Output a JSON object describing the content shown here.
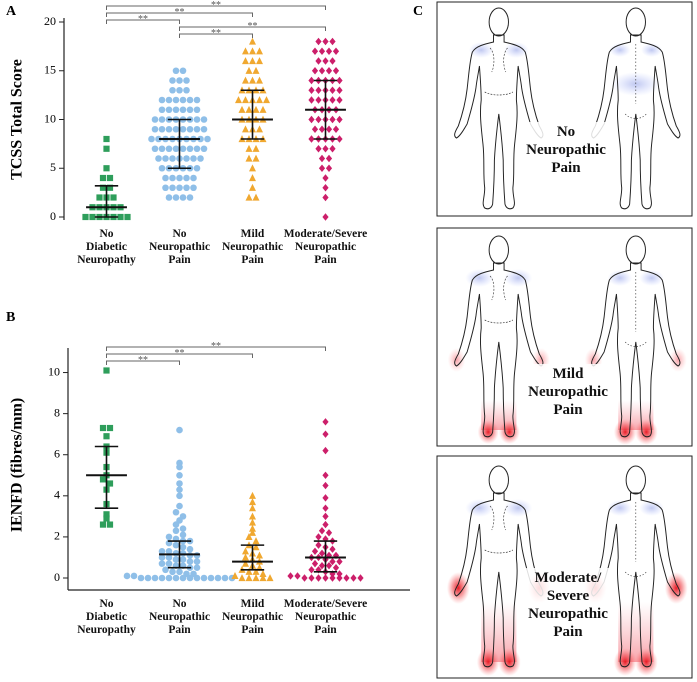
{
  "chart_data": [
    {
      "type": "strip",
      "panel_label": "A",
      "y_label": "TCSS Total Score",
      "categories": [
        "No\nDiabetic\nNeuropathy",
        "No\nNeuropathic\nPain",
        "Mild\nNeuropathic\nPain",
        "Moderate/Severe\nNeuropathic\nPain"
      ],
      "ylim": [
        0,
        20
      ],
      "yticks": [
        0,
        5,
        10,
        15,
        20
      ],
      "series": [
        {
          "color": "#2e9e5b",
          "marker": "square",
          "median": 1,
          "q1": 0,
          "q3": 3.2,
          "values": [
            8,
            7,
            5,
            4,
            4,
            3,
            3,
            2,
            2,
            2,
            1,
            1,
            1,
            1,
            1,
            0,
            0,
            0,
            0,
            0,
            0,
            0
          ]
        },
        {
          "color": "#8fbfe8",
          "marker": "circle",
          "median": 8,
          "q1": 5,
          "q3": 10,
          "values": [
            15,
            15,
            14,
            14,
            14,
            13,
            13,
            13,
            12,
            12,
            12,
            12,
            12,
            12,
            11,
            11,
            11,
            11,
            11,
            11,
            10,
            10,
            10,
            10,
            10,
            10,
            10,
            10,
            9,
            9,
            9,
            9,
            9,
            9,
            9,
            9,
            8,
            8,
            8,
            8,
            8,
            8,
            8,
            8,
            8,
            7,
            7,
            7,
            7,
            7,
            7,
            7,
            7,
            6,
            6,
            6,
            6,
            6,
            6,
            6,
            5,
            5,
            5,
            5,
            5,
            5,
            4,
            4,
            4,
            4,
            4,
            3,
            3,
            3,
            3,
            3,
            2,
            2,
            2,
            2
          ]
        },
        {
          "color": "#f0a830",
          "marker": "triangle",
          "median": 10,
          "q1": 8,
          "q3": 13,
          "values": [
            18,
            17,
            17,
            17,
            16,
            16,
            16,
            15,
            15,
            14,
            14,
            14,
            13,
            13,
            13,
            13,
            12,
            12,
            12,
            12,
            12,
            11,
            11,
            11,
            11,
            10,
            10,
            10,
            10,
            9,
            9,
            9,
            8,
            8,
            8,
            8,
            7,
            7,
            6,
            6,
            5,
            4,
            3,
            2,
            2
          ]
        },
        {
          "color": "#cc1f6a",
          "marker": "diamond",
          "median": 11,
          "q1": 8,
          "q3": 14,
          "values": [
            18,
            18,
            18,
            17,
            17,
            17,
            17,
            16,
            16,
            16,
            15,
            15,
            15,
            15,
            14,
            14,
            14,
            14,
            14,
            13,
            13,
            13,
            13,
            13,
            12,
            12,
            12,
            12,
            12,
            11,
            11,
            11,
            11,
            10,
            10,
            10,
            10,
            10,
            9,
            9,
            9,
            9,
            8,
            8,
            8,
            8,
            8,
            7,
            7,
            7,
            6,
            6,
            5,
            5,
            4,
            3,
            2,
            0
          ]
        }
      ],
      "brackets": [
        {
          "from": 0,
          "to": 3,
          "label": "**"
        },
        {
          "from": 0,
          "to": 2,
          "label": "**"
        },
        {
          "from": 0,
          "to": 1,
          "label": "**"
        },
        {
          "from": 1,
          "to": 3,
          "label": "**"
        },
        {
          "from": 1,
          "to": 2,
          "label": "**"
        }
      ]
    },
    {
      "type": "strip",
      "panel_label": "B",
      "y_label": "IENFD (fibres/mm)",
      "categories": [
        "No\nDiabetic\nNeuropathy",
        "No\nNeuropathic\nPain",
        "Mild\nNeuropathic\nPain",
        "Moderate/Severe\nNeuropathic\nPain"
      ],
      "ylim": [
        0,
        11
      ],
      "yticks": [
        0,
        2,
        4,
        6,
        8,
        10
      ],
      "x_axis_line": true,
      "series": [
        {
          "color": "#2e9e5b",
          "marker": "square",
          "median": 5.0,
          "q1": 3.4,
          "q3": 6.4,
          "values": [
            10.1,
            7.3,
            7.3,
            6.9,
            6.4,
            6.1,
            5.4,
            5.0,
            4.8,
            4.6,
            4.3,
            3.6,
            3.1,
            2.9,
            2.6,
            2.6
          ]
        },
        {
          "color": "#8fbfe8",
          "marker": "circle",
          "median": 1.15,
          "q1": 0.5,
          "q3": 1.8,
          "values": [
            7.2,
            5.6,
            5.4,
            5.0,
            4.6,
            4.3,
            4.0,
            3.5,
            3.2,
            3.0,
            2.8,
            2.6,
            2.4,
            2.3,
            2.1,
            2.0,
            1.9,
            1.8,
            1.8,
            1.7,
            1.6,
            1.5,
            1.4,
            1.3,
            1.3,
            1.2,
            1.2,
            1.1,
            1.1,
            1.0,
            1.0,
            0.9,
            0.9,
            0.8,
            0.8,
            0.7,
            0.7,
            0.6,
            0.6,
            0.5,
            0.5,
            0.4,
            0.3,
            0.3,
            0.2,
            0.2,
            0.1,
            0.1,
            0,
            0,
            0,
            0,
            0,
            0,
            0,
            0,
            0,
            0,
            0,
            0,
            0,
            0
          ]
        },
        {
          "color": "#f0a830",
          "marker": "triangle",
          "median": 0.8,
          "q1": 0.4,
          "q3": 1.6,
          "values": [
            4.0,
            3.7,
            3.4,
            3.0,
            2.7,
            2.4,
            2.2,
            2.0,
            1.8,
            1.6,
            1.5,
            1.3,
            1.2,
            1.1,
            1.0,
            0.9,
            0.8,
            0.7,
            0.6,
            0.5,
            0.4,
            0.3,
            0.3,
            0.2,
            0.1,
            0,
            0,
            0,
            0,
            0
          ]
        },
        {
          "color": "#cc1f6a",
          "marker": "diamond",
          "median": 1.0,
          "q1": 0.3,
          "q3": 1.8,
          "values": [
            7.6,
            7.0,
            6.2,
            5.0,
            4.5,
            3.9,
            3.4,
            3.0,
            2.6,
            2.3,
            2.2,
            2.0,
            1.9,
            1.8,
            1.6,
            1.5,
            1.4,
            1.3,
            1.2,
            1.1,
            1.1,
            1.0,
            1.0,
            0.9,
            0.8,
            0.8,
            0.7,
            0.6,
            0.6,
            0.5,
            0.4,
            0.4,
            0.3,
            0.2,
            0.2,
            0.1,
            0.1,
            0,
            0,
            0,
            0,
            0,
            0,
            0,
            0,
            0
          ]
        }
      ],
      "brackets": [
        {
          "from": 0,
          "to": 3,
          "label": "**"
        },
        {
          "from": 0,
          "to": 2,
          "label": "**"
        },
        {
          "from": 0,
          "to": 1,
          "label": "**"
        }
      ]
    }
  ],
  "panel_c": {
    "panel_label": "C",
    "diagrams": [
      {
        "label": "No\nNeuropathic\nPain"
      },
      {
        "label": "Mild\nNeuropathic\nPain"
      },
      {
        "label": "Moderate/\nSevere\nNeuropathic\nPain"
      }
    ]
  }
}
